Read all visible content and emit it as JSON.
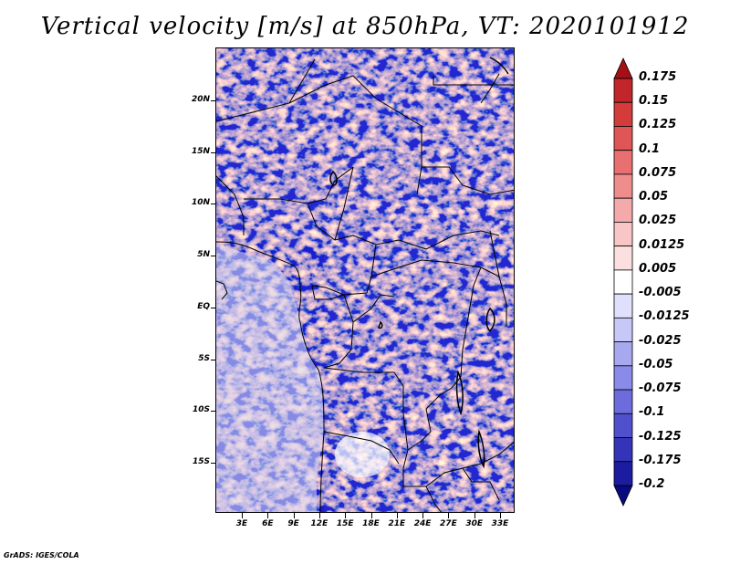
{
  "title": "Vertical velocity [m/s] at 850hPa, VT: 2020101912",
  "credit": "GrADS: IGES/COLA",
  "map": {
    "lat_labels": [
      "20N",
      "15N",
      "10N",
      "5N",
      "EQ",
      "5S",
      "10S",
      "15S"
    ],
    "lon_labels": [
      "3E",
      "6E",
      "9E",
      "12E",
      "15E",
      "18E",
      "21E",
      "24E",
      "27E",
      "30E",
      "33E"
    ],
    "lon_range": [
      0,
      34
    ],
    "lat_range": [
      -20,
      24
    ]
  },
  "colorbar": {
    "labels": [
      "0.175",
      "0.15",
      "0.125",
      "0.1",
      "0.075",
      "0.05",
      "0.025",
      "0.0125",
      "0.005",
      "-0.005",
      "-0.0125",
      "-0.025",
      "-0.05",
      "-0.075",
      "-0.1",
      "-0.125",
      "-0.175",
      "-0.2"
    ],
    "colors": [
      "#a50f15",
      "#c0262a",
      "#d43c3c",
      "#e05555",
      "#e87070",
      "#ef8c8c",
      "#f4aaaa",
      "#f8c6c6",
      "#fce0e0",
      "#ffffff",
      "#e0e0fc",
      "#c8c8f8",
      "#a8a8f0",
      "#8a8ae8",
      "#6c6cdc",
      "#5050cc",
      "#3434b8",
      "#1c1ca0",
      "#0a0a80"
    ]
  }
}
